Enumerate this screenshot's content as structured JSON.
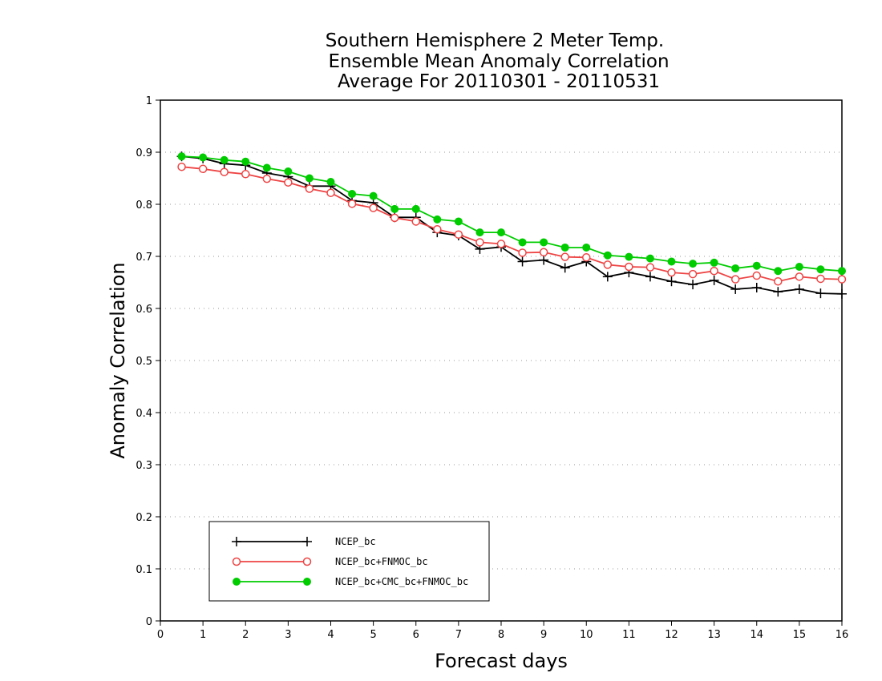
{
  "chart_data": {
    "type": "line",
    "title": [
      "Southern Hemisphere 2 Meter Temp.",
      "Ensemble Mean Anomaly Correlation",
      "Average For 20110301 - 20110531"
    ],
    "xlabel": "Forecast days",
    "ylabel": "Anomaly Correlation",
    "xlim": [
      0,
      16
    ],
    "ylim": [
      0,
      1
    ],
    "xticks": [
      "0",
      "1",
      "2",
      "3",
      "4",
      "5",
      "6",
      "7",
      "8",
      "9",
      "10",
      "11",
      "12",
      "13",
      "14",
      "15",
      "16"
    ],
    "yticks": [
      "0",
      "0.1",
      "0.2",
      "0.3",
      "0.4",
      "0.5",
      "0.6",
      "0.7",
      "0.8",
      "0.9",
      "1"
    ],
    "grid": "horizontal dotted",
    "legend_position": "bottom-left",
    "x": [
      0.5,
      1,
      1.5,
      2,
      2.5,
      3,
      3.5,
      4,
      4.5,
      5,
      5.5,
      6,
      6.5,
      7,
      7.5,
      8,
      8.5,
      9,
      9.5,
      10,
      10.5,
      11,
      11.5,
      12,
      12.5,
      13,
      13.5,
      14,
      14.5,
      15,
      15.5,
      16
    ],
    "series": [
      {
        "name": "NCEP_bc",
        "color": "#000000",
        "marker": "plus",
        "values": [
          0.892,
          0.888,
          0.878,
          0.875,
          0.86,
          0.853,
          0.835,
          0.835,
          0.807,
          0.803,
          0.775,
          0.775,
          0.746,
          0.74,
          0.714,
          0.718,
          0.69,
          0.693,
          0.678,
          0.69,
          0.661,
          0.669,
          0.661,
          0.652,
          0.646,
          0.654,
          0.637,
          0.64,
          0.632,
          0.637,
          0.629,
          0.628
        ]
      },
      {
        "name": "NCEP_bc+FNMOC_bc",
        "color": "#ee4444",
        "marker": "open-circle",
        "values": [
          0.872,
          0.868,
          0.862,
          0.858,
          0.849,
          0.842,
          0.83,
          0.822,
          0.801,
          0.793,
          0.774,
          0.767,
          0.752,
          0.742,
          0.727,
          0.724,
          0.707,
          0.708,
          0.699,
          0.698,
          0.684,
          0.68,
          0.679,
          0.669,
          0.666,
          0.672,
          0.656,
          0.663,
          0.652,
          0.661,
          0.657,
          0.656
        ]
      },
      {
        "name": "NCEP_bc+CMC_bc+FNMOC_bc",
        "color": "#00cc00",
        "marker": "filled-circle",
        "values": [
          0.892,
          0.89,
          0.885,
          0.882,
          0.87,
          0.863,
          0.85,
          0.843,
          0.82,
          0.816,
          0.791,
          0.791,
          0.771,
          0.767,
          0.746,
          0.746,
          0.727,
          0.727,
          0.717,
          0.717,
          0.702,
          0.699,
          0.696,
          0.69,
          0.686,
          0.688,
          0.677,
          0.682,
          0.672,
          0.68,
          0.675,
          0.672
        ]
      }
    ]
  }
}
